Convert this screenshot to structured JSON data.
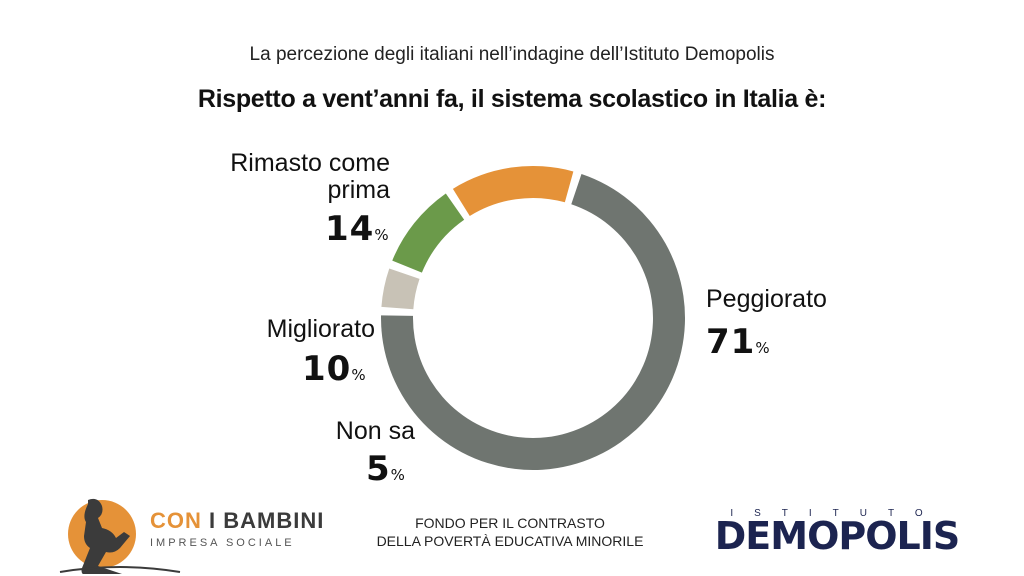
{
  "header": {
    "subtitle": "La percezione degli italiani nell’indagine dell’Istituto Demopolis",
    "title": "Rispetto a vent’anni fa, il sistema scolastico in Italia è:"
  },
  "chart_data": {
    "type": "pie",
    "donut": true,
    "title": "Rispetto a vent’anni fa, il sistema scolastico in Italia è:",
    "slices": [
      {
        "label": "Peggiorato",
        "value": 71,
        "color": "#6f7570"
      },
      {
        "label": "Non sa",
        "value": 5,
        "color": "#c8c2b6"
      },
      {
        "label": "Migliorato",
        "value": 10,
        "color": "#6b9a4a"
      },
      {
        "label": "Rimasto come prima",
        "value": 14,
        "color": "#e59238"
      }
    ],
    "unit": "%"
  },
  "labels": {
    "rimasto_line1": "Rimasto come",
    "rimasto_line2": "prima",
    "rimasto_value": "14",
    "migliorato": "Migliorato",
    "migliorato_value": "10",
    "nonsa": "Non sa",
    "nonsa_value": "5",
    "peggiorato": "Peggiorato",
    "peggiorato_value": "71",
    "pct": "%"
  },
  "footer": {
    "cib_part1": "CON",
    "cib_part2": "I BAMBINI",
    "cib_sub": "IMPRESA SOCIALE",
    "fondo_line1": "FONDO PER IL CONTRASTO",
    "fondo_line2": "DELLA POVERTÀ EDUCATIVA MINORILE",
    "demopolis_top": "ISTITUTO",
    "demopolis_name": "DEMOPOLIS"
  },
  "colors": {
    "peggiorato": "#6f7570",
    "nonsa": "#c8c2b6",
    "migliorato": "#6b9a4a",
    "rimasto": "#e59238",
    "demopolis_navy": "#1c2450",
    "cib_orange": "#e59238"
  }
}
